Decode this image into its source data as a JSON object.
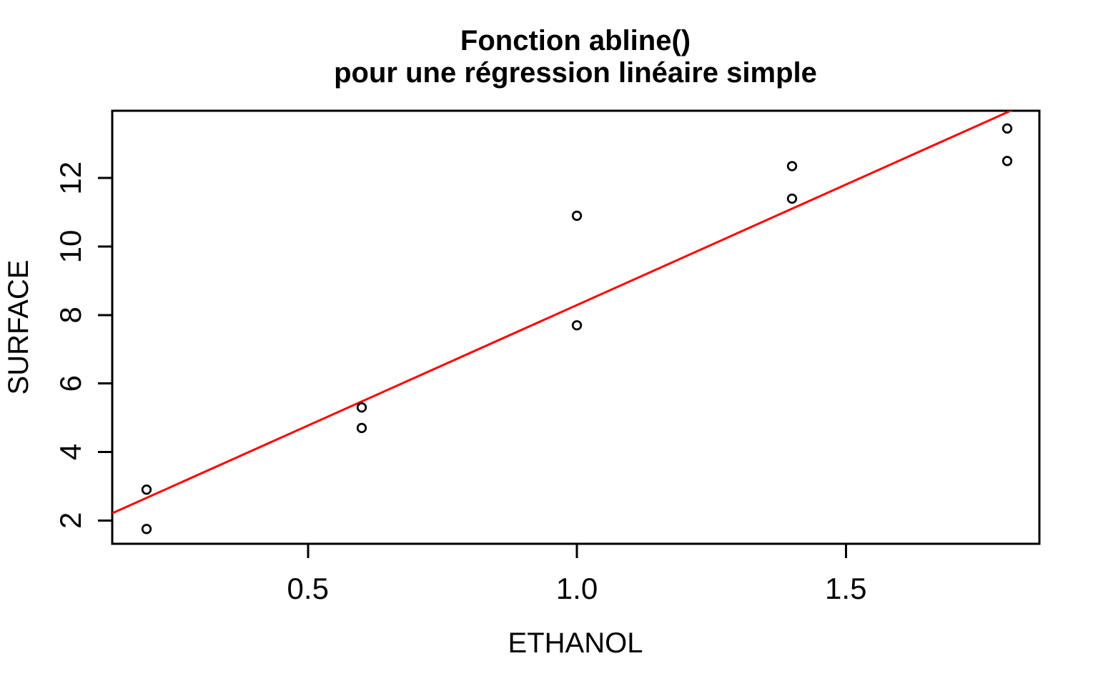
{
  "chart_data": {
    "type": "scatter",
    "title": "Fonction abline()\npour une régression linéaire simple",
    "title_lines": [
      "Fonction abline()",
      "pour une régression linéaire simple"
    ],
    "xlabel": "ETHANOL",
    "ylabel": "SURFACE",
    "x_ticks": {
      "values": [
        0.5,
        1.0,
        1.5
      ],
      "labels": [
        "0.5",
        "1.0",
        "1.5"
      ]
    },
    "y_ticks": {
      "values": [
        2,
        4,
        6,
        8,
        10,
        12
      ],
      "labels": [
        "2",
        "4",
        "6",
        "8",
        "10",
        "12"
      ]
    },
    "xlim": [
      0.1362,
      1.8598
    ],
    "ylim": [
      1.317,
      13.967
    ],
    "grid": false,
    "legend": "none",
    "points": [
      {
        "x": 0.2,
        "y": 2.9
      },
      {
        "x": 0.2,
        "y": 1.75
      },
      {
        "x": 0.6,
        "y": 5.3
      },
      {
        "x": 0.6,
        "y": 4.7
      },
      {
        "x": 1.0,
        "y": 10.9
      },
      {
        "x": 1.0,
        "y": 7.7
      },
      {
        "x": 1.4,
        "y": 12.35
      },
      {
        "x": 1.4,
        "y": 11.4
      },
      {
        "x": 1.8,
        "y": 13.45
      },
      {
        "x": 1.8,
        "y": 12.5
      }
    ],
    "marker": "open-circle",
    "regression_line": {
      "intercept": 1.25,
      "slope": 7.04
    },
    "colors": {
      "background": "#FFFFFF",
      "axes_and_text": "#000000",
      "points": "#000000",
      "regression_line": "#FF0000"
    }
  }
}
